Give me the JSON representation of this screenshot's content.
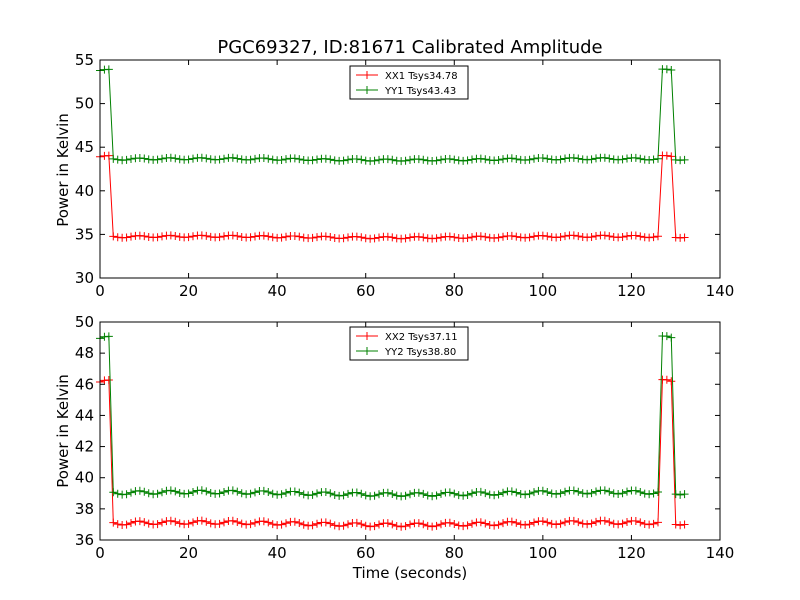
{
  "chart_data": [
    {
      "type": "line",
      "title": "PGC69327, ID:81671 Calibrated Amplitude",
      "xlabel": "",
      "ylabel": "Power in Kelvin",
      "xlim": [
        0,
        140
      ],
      "ylim": [
        30,
        55
      ],
      "xticks": [
        "0",
        "20",
        "40",
        "60",
        "80",
        "100",
        "120",
        "140"
      ],
      "yticks": [
        "30",
        "35",
        "40",
        "45",
        "50",
        "55"
      ],
      "legend_position": "top-center",
      "series": [
        {
          "name": "XX1 Tsys34.78",
          "color": "#ff0000",
          "marker": "plus",
          "low": 34.7,
          "high": 43.9,
          "transition_points": [
            [
              2.6,
              41.3
            ],
            [
              126.6,
              43.1
            ],
            [
              129.6,
              41.8
            ]
          ],
          "x_start": 0,
          "x_end": 132.6,
          "step": 1,
          "high_ranges": [
            [
              0,
              2.6
            ],
            [
              126.6,
              129.6
            ]
          ]
        },
        {
          "name": "YY1 Tsys43.43",
          "color": "#008000",
          "marker": "plus",
          "low": 43.6,
          "high": 53.8,
          "transition_points": [
            [
              2.6,
              50.9
            ],
            [
              126.6,
              53.0
            ],
            [
              129.6,
              51.6
            ]
          ],
          "x_start": 0,
          "x_end": 132.6,
          "step": 1,
          "high_ranges": [
            [
              0,
              2.6
            ],
            [
              126.6,
              129.6
            ]
          ]
        }
      ]
    },
    {
      "type": "line",
      "title": "",
      "xlabel": "Time (seconds)",
      "ylabel": "Power in Kelvin",
      "xlim": [
        0,
        140
      ],
      "ylim": [
        36,
        50
      ],
      "xticks": [
        "0",
        "20",
        "40",
        "60",
        "80",
        "100",
        "120",
        "140"
      ],
      "yticks": [
        "36",
        "38",
        "40",
        "42",
        "44",
        "46",
        "48",
        "50"
      ],
      "legend_position": "top-center",
      "series": [
        {
          "name": "XX2 Tsys37.11",
          "color": "#ff0000",
          "marker": "plus",
          "low": 37.05,
          "high": 46.15,
          "transition_points": [
            [
              2.6,
              43.6
            ],
            [
              126.6,
              45.3
            ],
            [
              129.6,
              44.3
            ]
          ],
          "x_start": 0,
          "x_end": 132.6,
          "step": 1,
          "high_ranges": [
            [
              0,
              2.6
            ],
            [
              126.6,
              129.6
            ]
          ]
        },
        {
          "name": "YY2 Tsys38.80",
          "color": "#008000",
          "marker": "plus",
          "low": 39.0,
          "high": 48.95,
          "transition_points": [
            [
              2.6,
              46.2
            ],
            [
              126.6,
              48.0
            ],
            [
              129.6,
              46.8
            ]
          ],
          "x_start": 0,
          "x_end": 132.6,
          "step": 1,
          "high_ranges": [
            [
              0,
              2.6
            ],
            [
              126.6,
              129.6
            ]
          ]
        }
      ]
    }
  ]
}
